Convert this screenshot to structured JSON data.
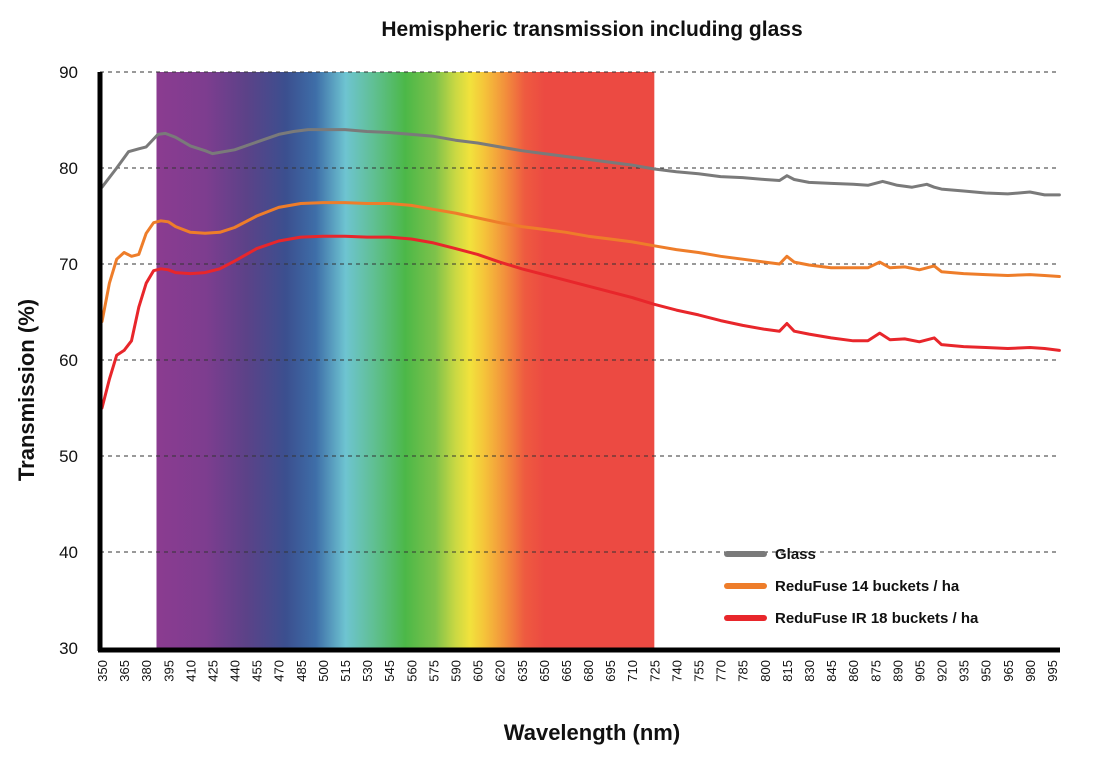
{
  "chart_data": {
    "type": "line",
    "title": "Hemispheric transmission including glass",
    "xlabel": "Wavelength (nm)",
    "ylabel": "Transmission (%)",
    "xlim": [
      350,
      1000
    ],
    "ylim": [
      30,
      90
    ],
    "yticks": [
      30,
      40,
      50,
      60,
      70,
      80,
      90
    ],
    "xticks": [
      350,
      365,
      380,
      395,
      410,
      425,
      440,
      455,
      470,
      485,
      500,
      515,
      530,
      545,
      560,
      575,
      590,
      605,
      620,
      635,
      650,
      665,
      680,
      695,
      710,
      725,
      740,
      755,
      770,
      785,
      800,
      815,
      830,
      845,
      860,
      875,
      890,
      905,
      920,
      935,
      950,
      965,
      980,
      995
    ],
    "grid": "dashed horizontal",
    "legend_position": "bottom-right",
    "visible_spectrum_band": [
      387,
      725
    ],
    "series": [
      {
        "name": "Glass",
        "color": "#7a7a7a",
        "x": [
          350,
          360,
          368,
          375,
          380,
          388,
          393,
          400,
          410,
          420,
          425,
          440,
          455,
          470,
          480,
          490,
          500,
          515,
          530,
          545,
          560,
          575,
          590,
          605,
          620,
          635,
          650,
          665,
          680,
          695,
          710,
          725,
          740,
          755,
          770,
          785,
          800,
          810,
          815,
          820,
          830,
          845,
          860,
          870,
          880,
          890,
          900,
          910,
          915,
          920,
          935,
          950,
          965,
          980,
          990,
          1000
        ],
        "y": [
          78,
          80,
          81.7,
          82,
          82.2,
          83.5,
          83.6,
          83.2,
          82.3,
          81.8,
          81.5,
          81.9,
          82.7,
          83.5,
          83.8,
          84,
          84,
          84,
          83.8,
          83.7,
          83.5,
          83.3,
          82.9,
          82.6,
          82.2,
          81.8,
          81.5,
          81.2,
          80.9,
          80.6,
          80.3,
          79.9,
          79.6,
          79.4,
          79.1,
          79,
          78.8,
          78.7,
          79.2,
          78.8,
          78.5,
          78.4,
          78.3,
          78.2,
          78.6,
          78.2,
          78,
          78.3,
          78,
          77.8,
          77.6,
          77.4,
          77.3,
          77.5,
          77.2,
          77.2
        ]
      },
      {
        "name": "ReduFuse 14 buckets / ha",
        "color": "#ee7d2a",
        "x": [
          350,
          355,
          360,
          365,
          370,
          375,
          380,
          385,
          390,
          395,
          400,
          410,
          420,
          430,
          440,
          455,
          470,
          485,
          500,
          515,
          530,
          545,
          560,
          575,
          590,
          605,
          620,
          635,
          650,
          665,
          680,
          695,
          710,
          725,
          740,
          755,
          770,
          785,
          800,
          810,
          815,
          820,
          830,
          845,
          860,
          870,
          878,
          885,
          895,
          905,
          915,
          920,
          935,
          950,
          965,
          980,
          990,
          1000
        ],
        "y": [
          64,
          68,
          70.5,
          71.2,
          70.8,
          71,
          73.2,
          74.3,
          74.5,
          74.4,
          73.9,
          73.3,
          73.2,
          73.3,
          73.8,
          75,
          75.9,
          76.3,
          76.4,
          76.4,
          76.3,
          76.3,
          76.1,
          75.7,
          75.3,
          74.8,
          74.3,
          73.9,
          73.6,
          73.3,
          72.9,
          72.6,
          72.3,
          71.9,
          71.5,
          71.2,
          70.8,
          70.5,
          70.2,
          70,
          70.8,
          70.2,
          69.9,
          69.6,
          69.6,
          69.6,
          70.2,
          69.6,
          69.7,
          69.4,
          69.8,
          69.2,
          69,
          68.9,
          68.8,
          68.9,
          68.8,
          68.7
        ]
      },
      {
        "name": "ReduFuse IR 18 buckets / ha",
        "color": "#e8262b",
        "x": [
          350,
          355,
          360,
          365,
          370,
          375,
          380,
          385,
          390,
          395,
          400,
          410,
          420,
          430,
          440,
          455,
          470,
          485,
          500,
          515,
          530,
          545,
          560,
          575,
          590,
          605,
          620,
          635,
          650,
          665,
          680,
          695,
          710,
          725,
          740,
          755,
          770,
          785,
          800,
          810,
          815,
          820,
          830,
          845,
          860,
          870,
          878,
          885,
          895,
          905,
          915,
          920,
          935,
          950,
          965,
          980,
          990,
          1000
        ],
        "y": [
          55,
          58,
          60.5,
          61,
          62,
          65.5,
          68,
          69.3,
          69.5,
          69.4,
          69.1,
          69,
          69.1,
          69.5,
          70.3,
          71.6,
          72.4,
          72.8,
          72.9,
          72.9,
          72.8,
          72.8,
          72.6,
          72.2,
          71.6,
          71,
          70.2,
          69.5,
          68.9,
          68.3,
          67.7,
          67.1,
          66.5,
          65.8,
          65.2,
          64.7,
          64.1,
          63.6,
          63.2,
          63,
          63.8,
          63,
          62.7,
          62.3,
          62,
          62,
          62.8,
          62.1,
          62.2,
          61.9,
          62.3,
          61.6,
          61.4,
          61.3,
          61.2,
          61.3,
          61.2,
          61
        ]
      }
    ]
  }
}
